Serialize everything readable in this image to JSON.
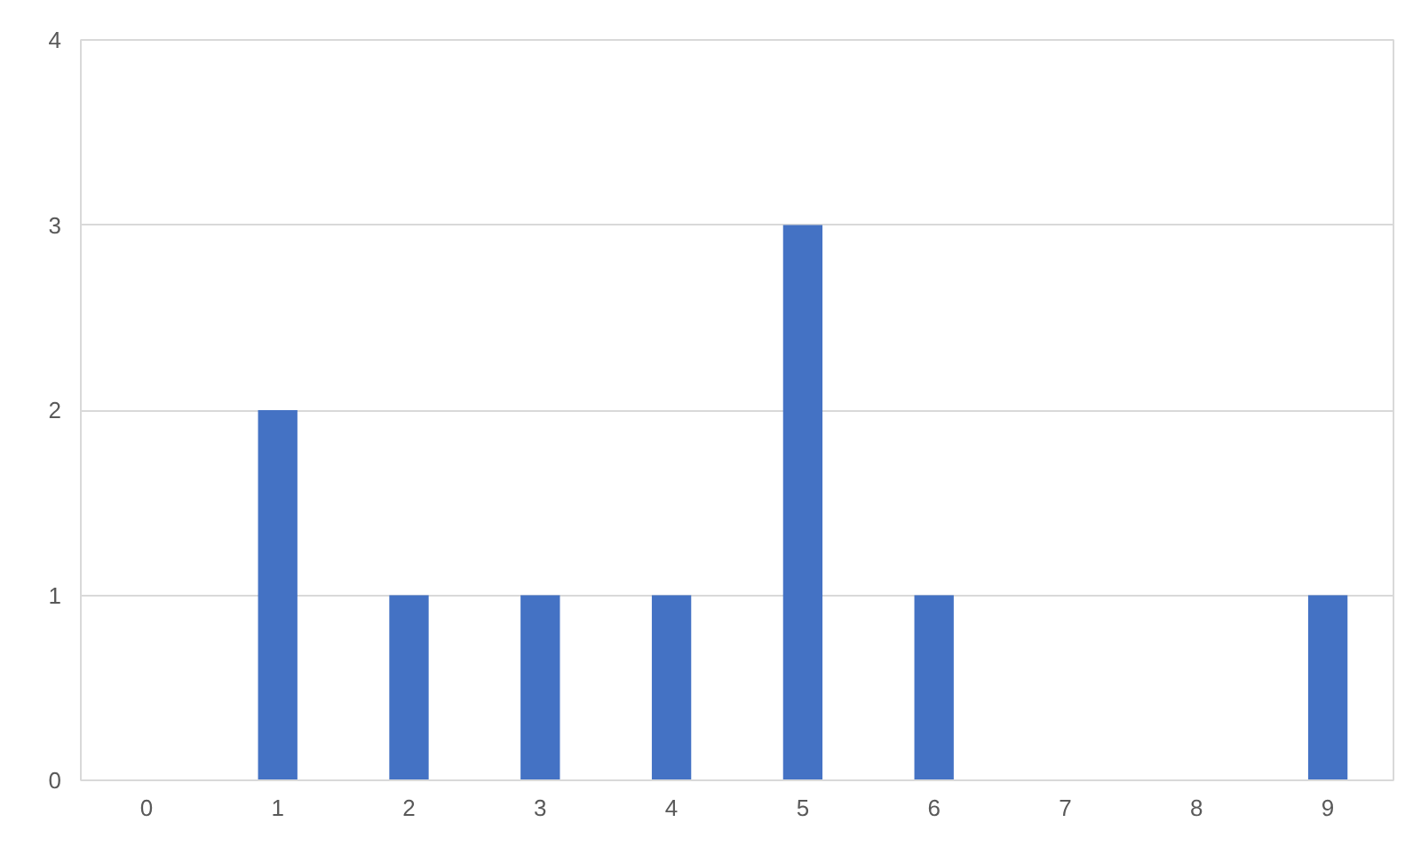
{
  "chart_data": {
    "type": "bar",
    "categories": [
      "0",
      "1",
      "2",
      "3",
      "4",
      "5",
      "6",
      "7",
      "8",
      "9"
    ],
    "values": [
      0,
      2,
      1,
      1,
      1,
      3,
      1,
      0,
      0,
      1
    ],
    "color": "#4472c4",
    "ylim": [
      0,
      4
    ],
    "yticks": [
      0,
      1,
      2,
      3,
      4
    ],
    "grid": "y"
  }
}
